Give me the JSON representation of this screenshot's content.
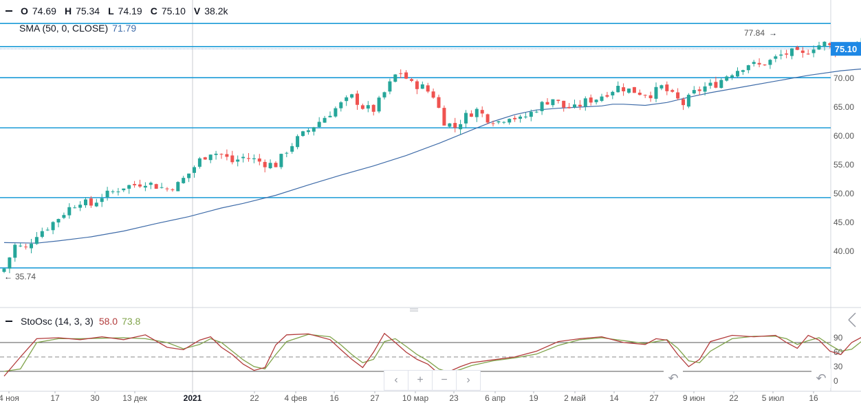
{
  "ohlcv": {
    "o_label": "O",
    "o": "74.69",
    "h_label": "H",
    "h": "75.34",
    "l_label": "L",
    "l": "74.19",
    "c_label": "C",
    "c": "75.10",
    "v_label": "V",
    "v": "38.2k"
  },
  "sma": {
    "label": "SMA (50, 0, CLOSE)",
    "value": "71.79"
  },
  "stoch": {
    "label": "StoOsc (14, 3, 3)",
    "k_value": "58.0",
    "d_value": "73.8"
  },
  "price_badge": "75.10",
  "high_marker": "77.84",
  "low_marker": "35.74",
  "colors": {
    "up": "#26a69a",
    "down": "#ef5350",
    "sma": "#3e6ba8",
    "hline": "#1a9bd7",
    "stoch_k": "#b23b3b",
    "stoch_d": "#7fa34a",
    "badge": "#1e88e5",
    "axis_text": "#555555"
  },
  "navigation": {
    "prev_icon": "chevron-left-icon",
    "zoom_in_icon": "plus-icon",
    "zoom_out_icon": "minus-icon",
    "next_icon": "chevron-right-icon",
    "reset_icon": "undo-icon"
  },
  "chart_data": {
    "type": "candlestick",
    "price_axis": {
      "range": [
        35,
        80
      ],
      "ticks": [
        "40.00",
        "45.00",
        "50.00",
        "55.00",
        "60.00",
        "65.00",
        "70.00"
      ]
    },
    "time_axis": {
      "ticks": [
        "4 ноя",
        "17",
        "30",
        "13 дек",
        "2021",
        "22",
        "4 фев",
        "16",
        "27",
        "10 мар",
        "23",
        "6 апр",
        "19",
        "2 май",
        "14",
        "27",
        "9 июн",
        "22",
        "5 июл",
        "16"
      ]
    },
    "horizontal_levels": [
      79.5,
      75.5,
      70.1,
      61.4,
      49.3,
      37.1
    ],
    "close_path": [
      [
        0,
        37.0
      ],
      [
        2,
        41.0
      ],
      [
        4,
        40.5
      ],
      [
        6,
        43.0
      ],
      [
        8,
        44.2
      ],
      [
        10,
        45.8
      ],
      [
        12,
        47.5
      ],
      [
        14,
        48.7
      ],
      [
        16,
        48.0
      ],
      [
        18,
        49.5
      ],
      [
        20,
        50.3
      ],
      [
        22,
        51.2
      ],
      [
        24,
        51.5
      ],
      [
        26,
        52.0
      ],
      [
        28,
        51.3
      ],
      [
        30,
        50.8
      ],
      [
        32,
        51.6
      ],
      [
        34,
        53.5
      ],
      [
        36,
        55.8
      ],
      [
        38,
        57.2
      ],
      [
        40,
        56.8
      ],
      [
        42,
        55.5
      ],
      [
        44,
        56.3
      ],
      [
        46,
        55.9
      ],
      [
        48,
        55.2
      ],
      [
        50,
        55.0
      ],
      [
        52,
        57.5
      ],
      [
        54,
        59.5
      ],
      [
        56,
        61.0
      ],
      [
        58,
        62.5
      ],
      [
        60,
        64.0
      ],
      [
        62,
        65.5
      ],
      [
        64,
        66.8
      ],
      [
        66,
        65.0
      ],
      [
        68,
        64.5
      ],
      [
        70,
        67.5
      ],
      [
        72,
        70.5
      ],
      [
        73,
        71.0
      ],
      [
        75,
        69.0
      ],
      [
        77,
        68.5
      ],
      [
        79,
        67.0
      ],
      [
        81,
        62.5
      ],
      [
        83,
        61.5
      ],
      [
        85,
        63.5
      ],
      [
        87,
        64.5
      ],
      [
        89,
        63.0
      ],
      [
        91,
        62.5
      ],
      [
        93,
        63.5
      ],
      [
        95,
        62.8
      ],
      [
        97,
        64.0
      ],
      [
        99,
        65.5
      ],
      [
        101,
        66.5
      ],
      [
        103,
        65.0
      ],
      [
        105,
        64.8
      ],
      [
        107,
        66.0
      ],
      [
        109,
        66.5
      ],
      [
        111,
        67.5
      ],
      [
        113,
        68.5
      ],
      [
        115,
        68.0
      ],
      [
        117,
        67.5
      ],
      [
        119,
        67.2
      ],
      [
        121,
        68.5
      ],
      [
        123,
        67.0
      ],
      [
        125,
        65.5
      ],
      [
        127,
        67.5
      ],
      [
        129,
        68.5
      ],
      [
        131,
        69.0
      ],
      [
        133,
        70.5
      ],
      [
        135,
        71.5
      ],
      [
        137,
        72.5
      ],
      [
        139,
        72.2
      ],
      [
        141,
        73.0
      ],
      [
        143,
        74.0
      ],
      [
        145,
        74.5
      ],
      [
        147,
        74.0
      ],
      [
        149,
        75.5
      ],
      [
        151,
        76.0
      ],
      [
        153,
        75.0
      ],
      [
        155,
        74.5
      ],
      [
        157,
        76.5
      ],
      [
        159,
        77.0
      ],
      [
        160,
        75.1
      ]
    ],
    "sma_path": [
      [
        0,
        41.5
      ],
      [
        6,
        41.4
      ],
      [
        10,
        41.8
      ],
      [
        16,
        42.5
      ],
      [
        22,
        43.5
      ],
      [
        28,
        44.8
      ],
      [
        34,
        46.0
      ],
      [
        38,
        47.0
      ],
      [
        40,
        47.5
      ],
      [
        44,
        48.3
      ],
      [
        50,
        49.7
      ],
      [
        56,
        51.5
      ],
      [
        62,
        53.2
      ],
      [
        68,
        54.8
      ],
      [
        74,
        56.6
      ],
      [
        80,
        58.7
      ],
      [
        86,
        61.0
      ],
      [
        90,
        62.5
      ],
      [
        94,
        63.7
      ],
      [
        98,
        64.5
      ],
      [
        102,
        64.8
      ],
      [
        106,
        65.0
      ],
      [
        110,
        65.2
      ],
      [
        112,
        65.5
      ],
      [
        114,
        65.5
      ],
      [
        118,
        65.3
      ],
      [
        122,
        65.8
      ],
      [
        126,
        66.7
      ],
      [
        130,
        67.5
      ],
      [
        136,
        68.5
      ],
      [
        142,
        69.5
      ],
      [
        148,
        70.5
      ],
      [
        154,
        71.3
      ],
      [
        160,
        71.8
      ]
    ],
    "stoch_k": [
      [
        0,
        10
      ],
      [
        3,
        50
      ],
      [
        6,
        88
      ],
      [
        10,
        90
      ],
      [
        14,
        86
      ],
      [
        18,
        92
      ],
      [
        22,
        86
      ],
      [
        26,
        96
      ],
      [
        30,
        70
      ],
      [
        33,
        65
      ],
      [
        36,
        85
      ],
      [
        38,
        92
      ],
      [
        40,
        70
      ],
      [
        42,
        55
      ],
      [
        44,
        35
      ],
      [
        46,
        22
      ],
      [
        48,
        28
      ],
      [
        50,
        75
      ],
      [
        52,
        96
      ],
      [
        56,
        98
      ],
      [
        60,
        86
      ],
      [
        62,
        65
      ],
      [
        64,
        45
      ],
      [
        66,
        28
      ],
      [
        68,
        60
      ],
      [
        70,
        99
      ],
      [
        72,
        80
      ],
      [
        74,
        60
      ],
      [
        76,
        45
      ],
      [
        78,
        35
      ],
      [
        80,
        15
      ],
      [
        82,
        20
      ],
      [
        84,
        30
      ],
      [
        86,
        38
      ],
      [
        90,
        44
      ],
      [
        94,
        50
      ],
      [
        98,
        62
      ],
      [
        102,
        82
      ],
      [
        106,
        88
      ],
      [
        110,
        92
      ],
      [
        114,
        80
      ],
      [
        118,
        76
      ],
      [
        120,
        88
      ],
      [
        122,
        85
      ],
      [
        124,
        55
      ],
      [
        126,
        30
      ],
      [
        128,
        45
      ],
      [
        130,
        82
      ],
      [
        134,
        95
      ],
      [
        138,
        92
      ],
      [
        142,
        95
      ],
      [
        144,
        80
      ],
      [
        146,
        68
      ],
      [
        148,
        95
      ],
      [
        150,
        85
      ],
      [
        152,
        62
      ],
      [
        154,
        55
      ],
      [
        156,
        80
      ],
      [
        158,
        92
      ],
      [
        160,
        58
      ]
    ],
    "stoch_d": [
      [
        0,
        20
      ],
      [
        3,
        25
      ],
      [
        6,
        80
      ],
      [
        10,
        88
      ],
      [
        14,
        88
      ],
      [
        18,
        89
      ],
      [
        22,
        90
      ],
      [
        26,
        88
      ],
      [
        30,
        80
      ],
      [
        33,
        67
      ],
      [
        36,
        76
      ],
      [
        38,
        88
      ],
      [
        40,
        80
      ],
      [
        42,
        62
      ],
      [
        44,
        44
      ],
      [
        46,
        30
      ],
      [
        48,
        25
      ],
      [
        50,
        55
      ],
      [
        52,
        82
      ],
      [
        56,
        97
      ],
      [
        60,
        92
      ],
      [
        62,
        75
      ],
      [
        64,
        55
      ],
      [
        66,
        38
      ],
      [
        68,
        45
      ],
      [
        70,
        82
      ],
      [
        72,
        88
      ],
      [
        74,
        72
      ],
      [
        76,
        55
      ],
      [
        78,
        42
      ],
      [
        80,
        25
      ],
      [
        82,
        18
      ],
      [
        84,
        24
      ],
      [
        86,
        32
      ],
      [
        90,
        42
      ],
      [
        94,
        48
      ],
      [
        98,
        56
      ],
      [
        102,
        74
      ],
      [
        106,
        86
      ],
      [
        110,
        90
      ],
      [
        114,
        84
      ],
      [
        118,
        78
      ],
      [
        120,
        82
      ],
      [
        122,
        86
      ],
      [
        124,
        68
      ],
      [
        126,
        42
      ],
      [
        128,
        38
      ],
      [
        130,
        62
      ],
      [
        134,
        88
      ],
      [
        138,
        93
      ],
      [
        142,
        93
      ],
      [
        144,
        88
      ],
      [
        146,
        76
      ],
      [
        148,
        84
      ],
      [
        150,
        90
      ],
      [
        152,
        75
      ],
      [
        154,
        62
      ],
      [
        156,
        66
      ],
      [
        158,
        84
      ],
      [
        160,
        74
      ]
    ],
    "stoch_axis": {
      "range": [
        0,
        100
      ],
      "ticks": [
        "90",
        "60",
        "30",
        "0"
      ],
      "levels": [
        80,
        50,
        20
      ]
    }
  }
}
